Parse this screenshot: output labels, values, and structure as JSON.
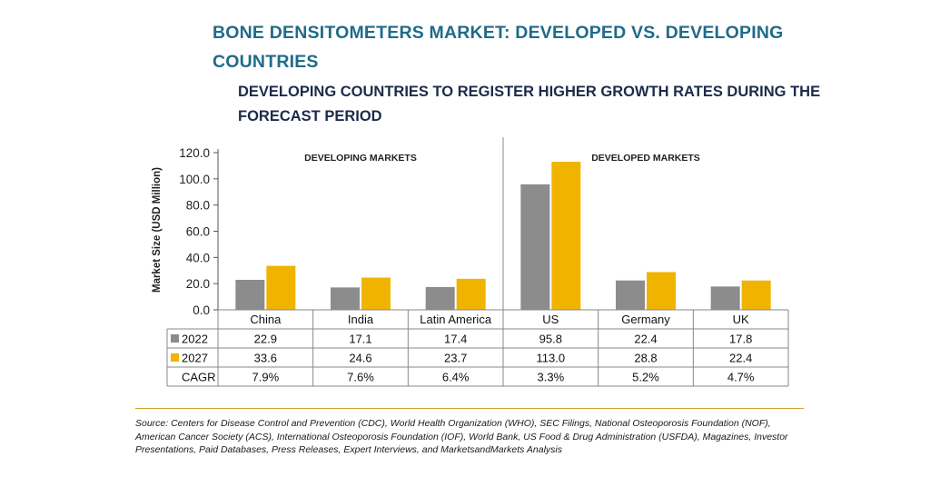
{
  "title": "BONE DENSITOMETERS MARKET: DEVELOPED VS. DEVELOPING COUNTRIES",
  "subtitle": "DEVELOPING COUNTRIES TO REGISTER HIGHER GROWTH RATES DURING THE FORECAST PERIOD",
  "source": "Source: Centers for Disease Control and Prevention (CDC), World Health Organization (WHO), SEC Filings, National Osteoporosis Foundation (NOF), American Cancer Society (ACS), International Osteoporosis Foundation (IOF), World Bank, US Food & Drug Administration (USFDA), Magazines, Investor Presentations, Paid Databases, Press Releases, Expert Interviews, and MarketsandMarkets Analysis",
  "colors": {
    "series_2022": "#8c8c8c",
    "series_2027": "#f0b400",
    "title": "#1f6b8a",
    "subtitle": "#1c2b4a",
    "rule": "#c9a227"
  },
  "chart_data": {
    "type": "bar",
    "ylabel": "Market Size (USD Million)",
    "ylim": [
      0,
      120
    ],
    "yticks": [
      "0.0",
      "20.0",
      "40.0",
      "60.0",
      "80.0",
      "100.0",
      "120.0"
    ],
    "groups": [
      {
        "label": "DEVELOPING MARKETS",
        "categories": [
          "China",
          "India",
          "Latin America"
        ]
      },
      {
        "label": "DEVELOPED MARKETS",
        "categories": [
          "US",
          "Germany",
          "UK"
        ]
      }
    ],
    "categories": [
      "China",
      "India",
      "Latin America",
      "US",
      "Germany",
      "UK"
    ],
    "series": [
      {
        "name": "2022",
        "values": [
          22.9,
          17.1,
          17.4,
          95.8,
          22.4,
          17.8
        ],
        "labels": [
          "22.9",
          "17.1",
          "17.4",
          "95.8",
          "22.4",
          "17.8"
        ]
      },
      {
        "name": "2027",
        "values": [
          33.6,
          24.6,
          23.7,
          113.0,
          28.8,
          22.4
        ],
        "labels": [
          "33.6",
          "24.6",
          "23.7",
          "113.0",
          "28.8",
          "22.4"
        ]
      }
    ],
    "table_extra_row": {
      "name": "CAGR",
      "values": [
        "7.9%",
        "7.6%",
        "6.4%",
        "3.3%",
        "5.2%",
        "4.7%"
      ]
    },
    "grid": false
  }
}
